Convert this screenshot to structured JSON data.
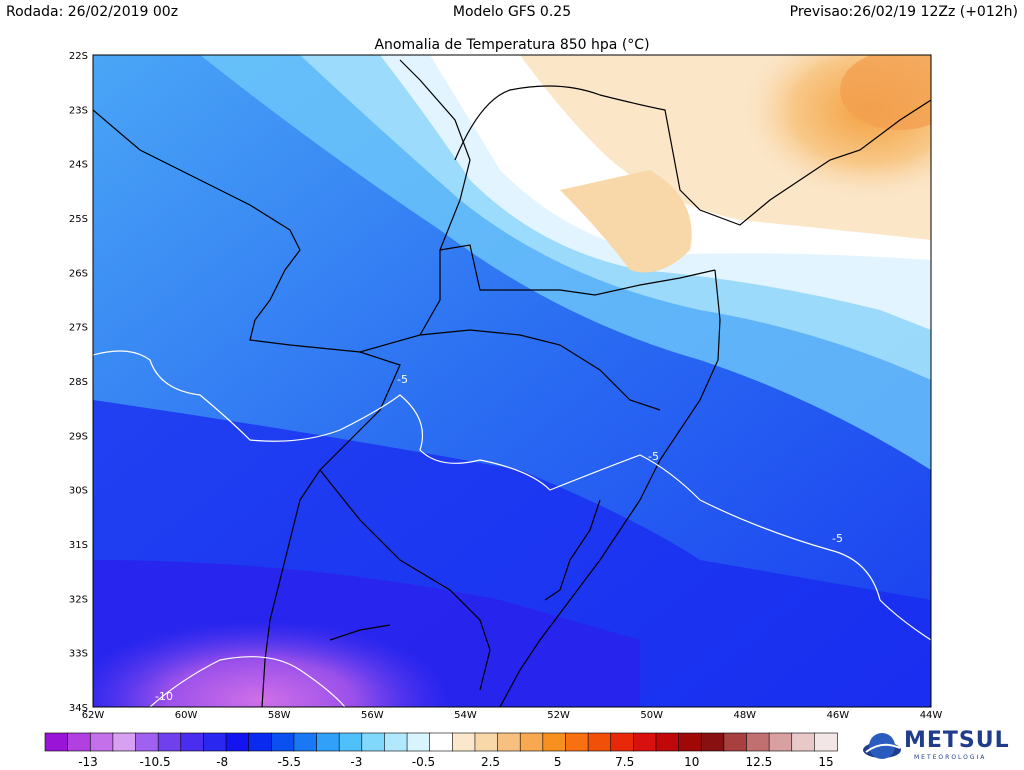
{
  "header": {
    "run": "Rodada: 26/02/2019 00z",
    "model": "Modelo GFS 0.25",
    "forecast": "Previsao:26/02/19 12Zz (+012h)"
  },
  "map": {
    "title": "Anomalia de Temperatura 850 hpa (°C)",
    "lat_ticks": [
      "22S",
      "23S",
      "24S",
      "25S",
      "26S",
      "27S",
      "28S",
      "29S",
      "30S",
      "31S",
      "32S",
      "33S",
      "34S"
    ],
    "lon_ticks": [
      "62W",
      "60W",
      "58W",
      "56W",
      "54W",
      "52W",
      "50W",
      "48W",
      "46W",
      "44W"
    ],
    "contour_labels": [
      "-5",
      "-5",
      "-5",
      "-10"
    ]
  },
  "colorbar": {
    "labels": [
      "-13",
      "-10.5",
      "-8",
      "-5.5",
      "-3",
      "-0.5",
      "2.5",
      "5",
      "7.5",
      "10",
      "12.5",
      "15"
    ],
    "colors": [
      "#9a14d8",
      "#b040e0",
      "#c470ea",
      "#d8a0f0",
      "#a060f0",
      "#7040ee",
      "#4a2ef0",
      "#2a28f0",
      "#1414f0",
      "#0a2af0",
      "#0a50f0",
      "#1a78f4",
      "#30a0f8",
      "#50c0fa",
      "#80d8fc",
      "#b0e8fe",
      "#d8f4ff",
      "#ffffff",
      "#fbe8cc",
      "#f8d8a8",
      "#f8c080",
      "#f8a850",
      "#f89020",
      "#f87010",
      "#f05008",
      "#e82808",
      "#d81010",
      "#c00808",
      "#a00808",
      "#881010",
      "#a84040",
      "#c07070",
      "#d8a0a0",
      "#e8c8c8",
      "#f2e6e6"
    ]
  },
  "logo": {
    "name": "METSUL",
    "tagline": "METEOROLOGIA"
  }
}
